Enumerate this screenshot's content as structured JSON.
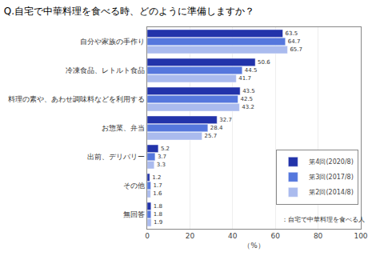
{
  "chart_data": {
    "type": "bar",
    "orientation": "horizontal",
    "title": "Q.自宅で中華料理を食べる時、どのように準備しますか？",
    "categories": [
      "自分や家族の手作り",
      "冷凍食品、レトルト食品",
      "料理の素や、あわせ調味料などを利用する",
      "お惣菜、弁当",
      "出前、デリバリー",
      "その他",
      "無回答"
    ],
    "series": [
      {
        "name": "第4回(2020/8)",
        "color": "#2233AA",
        "values": [
          63.5,
          50.6,
          43.5,
          32.7,
          5.2,
          1.2,
          1.8
        ]
      },
      {
        "name": "第3回(2017/8)",
        "color": "#5577DD",
        "values": [
          64.7,
          44.5,
          42.5,
          28.4,
          3.7,
          1.7,
          1.8
        ]
      },
      {
        "name": "第2回(2014/8)",
        "color": "#AABBEE",
        "values": [
          65.7,
          41.7,
          43.2,
          25.7,
          3.3,
          1.6,
          1.9
        ]
      }
    ],
    "xlabel": "（%）",
    "xlim": [
      0,
      100
    ],
    "xticks": [
      0,
      20,
      40,
      60,
      80,
      100
    ],
    "grid": true,
    "data_labels": true,
    "legend": "right",
    "annotations": [
      "：自宅で中華料理を食べる人"
    ]
  }
}
